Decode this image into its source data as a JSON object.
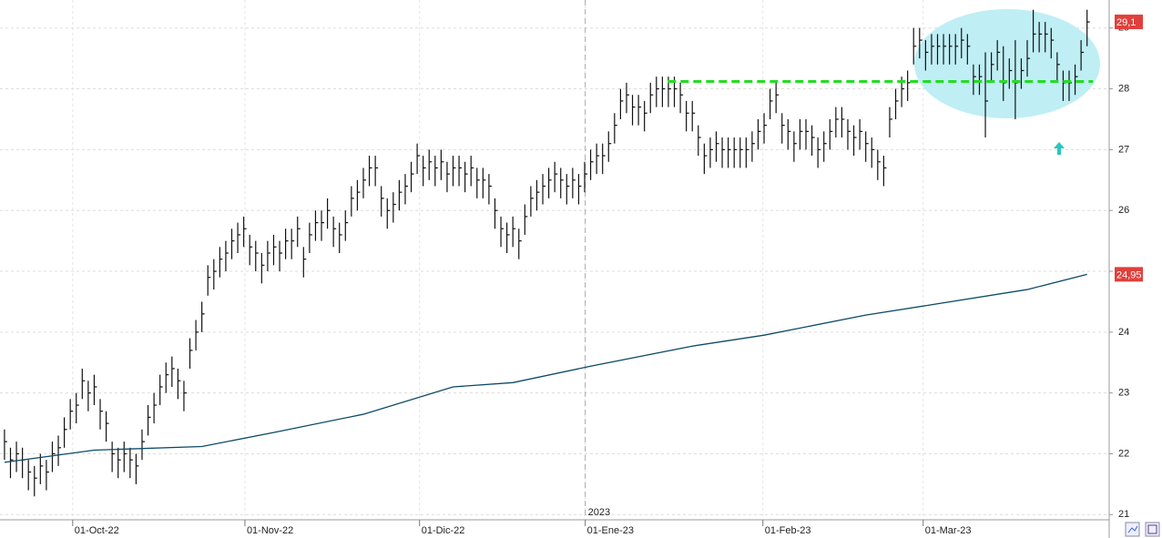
{
  "chart_data": {
    "type": "ohlc",
    "xlim": [
      -0.75,
      184.7
    ],
    "ylim": [
      20.93,
      29.46
    ],
    "yticks": [
      21,
      22,
      23,
      24,
      25,
      26,
      27,
      28,
      29
    ],
    "xticks": [
      {
        "value": 11.4,
        "label": "01-Oct-22"
      },
      {
        "value": 40.2,
        "label": "01-Nov-22"
      },
      {
        "value": 69.4,
        "label": "01-Dic-22"
      },
      {
        "value": 97.1,
        "label": "01-Ene-23"
      },
      {
        "value": 126.8,
        "label": "01-Feb-23"
      },
      {
        "value": 153.6,
        "label": "01-Mar-23"
      }
    ],
    "year_marker": {
      "value": 97.1,
      "label": "2023"
    },
    "grid": true,
    "color": "#111111",
    "high": [
      22.4,
      22.1,
      22.2,
      22.1,
      21.9,
      21.8,
      22.0,
      21.9,
      22.2,
      22.3,
      22.6,
      22.9,
      23.0,
      23.4,
      23.2,
      23.3,
      22.9,
      22.7,
      22.2,
      22.1,
      22.2,
      22.1,
      22.0,
      22.4,
      22.8,
      23.0,
      23.3,
      23.5,
      23.6,
      23.4,
      23.2,
      23.9,
      24.2,
      24.5,
      25.1,
      25.2,
      25.4,
      25.5,
      25.7,
      25.8,
      25.9,
      25.6,
      25.5,
      25.3,
      25.5,
      25.6,
      25.5,
      25.7,
      25.7,
      25.9,
      25.4,
      25.8,
      26.0,
      26.0,
      26.2,
      25.9,
      25.8,
      26.0,
      26.4,
      26.5,
      26.7,
      26.9,
      26.9,
      26.4,
      26.2,
      26.3,
      26.5,
      26.6,
      26.8,
      27.1,
      26.9,
      27.0,
      26.9,
      27.0,
      26.8,
      26.9,
      26.9,
      26.8,
      26.9,
      26.7,
      26.7,
      26.6,
      26.2,
      25.9,
      25.8,
      25.9,
      25.7,
      26.1,
      26.4,
      26.5,
      26.6,
      26.7,
      26.8,
      26.7,
      26.6,
      26.7,
      26.6,
      26.8,
      27.0,
      27.1,
      27.1,
      27.3,
      27.6,
      28.0,
      28.1,
      27.9,
      27.9,
      27.8,
      28.1,
      28.2,
      28.2,
      28.2,
      28.2,
      28.1,
      27.8,
      27.8,
      27.4,
      27.1,
      27.2,
      27.3,
      27.2,
      27.2,
      27.2,
      27.2,
      27.2,
      27.3,
      27.5,
      27.6,
      28.0,
      28.1,
      27.6,
      27.5,
      27.3,
      27.5,
      27.5,
      27.4,
      27.2,
      27.3,
      27.5,
      27.7,
      27.7,
      27.5,
      27.4,
      27.5,
      27.3,
      27.2,
      27.0,
      26.9,
      27.7,
      28.0,
      28.2,
      28.3,
      29.0,
      29.0,
      28.8,
      28.9,
      28.9,
      28.9,
      28.9,
      28.9,
      29.0,
      28.9,
      28.4,
      28.4,
      28.6,
      28.6,
      28.8,
      28.7,
      28.5,
      28.8,
      28.5,
      28.8,
      29.3,
      29.1,
      29.1,
      29.0,
      28.6,
      28.3,
      28.3,
      28.4,
      28.8,
      29.3
    ],
    "low": [
      21.9,
      21.6,
      21.7,
      21.6,
      21.4,
      21.3,
      21.5,
      21.4,
      21.7,
      21.8,
      22.1,
      22.4,
      22.5,
      22.9,
      22.7,
      22.8,
      22.4,
      22.2,
      21.7,
      21.6,
      21.7,
      21.6,
      21.5,
      21.9,
      22.3,
      22.5,
      22.8,
      23.0,
      23.1,
      22.9,
      22.7,
      23.4,
      23.7,
      24.0,
      24.6,
      24.7,
      24.9,
      25.0,
      25.2,
      25.3,
      25.4,
      25.1,
      25.0,
      24.8,
      25.0,
      25.1,
      25.0,
      25.2,
      25.2,
      25.4,
      24.9,
      25.3,
      25.5,
      25.5,
      25.7,
      25.4,
      25.3,
      25.5,
      25.9,
      26.0,
      26.2,
      26.4,
      26.4,
      25.9,
      25.7,
      25.8,
      26.0,
      26.1,
      26.3,
      26.6,
      26.4,
      26.5,
      26.4,
      26.5,
      26.3,
      26.4,
      26.4,
      26.3,
      26.4,
      26.2,
      26.2,
      26.1,
      25.7,
      25.4,
      25.3,
      25.4,
      25.2,
      25.6,
      25.9,
      26.0,
      26.1,
      26.2,
      26.3,
      26.2,
      26.1,
      26.2,
      26.1,
      26.3,
      26.5,
      26.6,
      26.6,
      26.8,
      27.1,
      27.5,
      27.6,
      27.4,
      27.4,
      27.3,
      27.6,
      27.7,
      27.7,
      27.7,
      27.7,
      27.6,
      27.3,
      27.3,
      26.9,
      26.6,
      26.7,
      26.8,
      26.7,
      26.7,
      26.7,
      26.7,
      26.7,
      26.8,
      27.0,
      27.1,
      27.5,
      27.6,
      27.1,
      27.0,
      26.8,
      27.0,
      27.0,
      26.9,
      26.7,
      26.8,
      27.0,
      27.2,
      27.2,
      27.0,
      26.9,
      27.0,
      26.8,
      26.7,
      26.5,
      26.4,
      27.2,
      27.5,
      27.7,
      27.8,
      28.4,
      28.5,
      28.3,
      28.4,
      28.4,
      28.4,
      28.4,
      28.4,
      28.5,
      28.4,
      27.9,
      27.9,
      27.2,
      28.1,
      28.3,
      27.8,
      28.0,
      27.5,
      28.0,
      28.2,
      28.6,
      28.6,
      28.6,
      28.5,
      28.1,
      27.8,
      27.8,
      27.9,
      28.3,
      28.7
    ],
    "close": [
      22.2,
      21.9,
      22.0,
      21.9,
      21.7,
      21.6,
      21.8,
      21.7,
      22.0,
      22.1,
      22.4,
      22.7,
      22.8,
      23.2,
      23.0,
      23.1,
      22.7,
      22.5,
      22.0,
      21.9,
      22.0,
      21.9,
      21.8,
      22.2,
      22.6,
      22.8,
      23.1,
      23.3,
      23.4,
      23.2,
      23.0,
      23.7,
      24.0,
      24.3,
      24.9,
      25.0,
      25.2,
      25.3,
      25.5,
      25.6,
      25.7,
      25.4,
      25.3,
      25.1,
      25.3,
      25.4,
      25.3,
      25.5,
      25.5,
      25.7,
      25.2,
      25.6,
      25.8,
      25.8,
      26.0,
      25.7,
      25.6,
      25.8,
      26.2,
      26.3,
      26.5,
      26.7,
      26.7,
      26.2,
      26.0,
      26.1,
      26.3,
      26.4,
      26.6,
      26.9,
      26.7,
      26.8,
      26.7,
      26.8,
      26.6,
      26.7,
      26.7,
      26.6,
      26.7,
      26.5,
      26.5,
      26.4,
      26.0,
      25.7,
      25.6,
      25.7,
      25.5,
      25.9,
      26.2,
      26.3,
      26.4,
      26.5,
      26.6,
      26.5,
      26.4,
      26.5,
      26.4,
      26.6,
      26.8,
      26.9,
      26.9,
      27.1,
      27.4,
      27.8,
      27.9,
      27.7,
      27.7,
      27.6,
      27.9,
      28.0,
      28.0,
      28.0,
      28.0,
      27.9,
      27.6,
      27.6,
      27.2,
      26.9,
      27.0,
      27.1,
      27.0,
      27.0,
      27.0,
      27.0,
      27.0,
      27.1,
      27.3,
      27.4,
      27.8,
      27.9,
      27.4,
      27.3,
      27.1,
      27.3,
      27.3,
      27.2,
      27.0,
      27.1,
      27.3,
      27.5,
      27.5,
      27.3,
      27.2,
      27.3,
      27.1,
      27.0,
      26.8,
      26.7,
      27.5,
      27.8,
      28.0,
      28.1,
      28.7,
      28.8,
      28.6,
      28.7,
      28.7,
      28.7,
      28.7,
      28.7,
      28.8,
      28.7,
      28.2,
      28.2,
      27.8,
      28.4,
      28.6,
      28.1,
      28.3,
      28.1,
      28.3,
      28.5,
      28.9,
      28.9,
      28.9,
      28.8,
      28.4,
      28.1,
      28.1,
      28.2,
      28.6,
      29.1
    ],
    "moving_average": {
      "color": "#0b4a66",
      "x": [
        0,
        15,
        33,
        45,
        60,
        75,
        85,
        98,
        115,
        127,
        144,
        155,
        171,
        181
      ],
      "values": [
        21.86,
        22.06,
        22.12,
        22.35,
        22.65,
        23.1,
        23.17,
        23.44,
        23.77,
        23.95,
        24.28,
        24.45,
        24.7,
        24.95
      ]
    },
    "reference_line": {
      "value": 28.12,
      "x": [
        110.9,
        182
      ],
      "color": "#22dd22"
    },
    "price_tags": [
      {
        "value": 29.1,
        "label": "29,1"
      },
      {
        "value": 24.95,
        "label": "24,95"
      }
    ]
  }
}
